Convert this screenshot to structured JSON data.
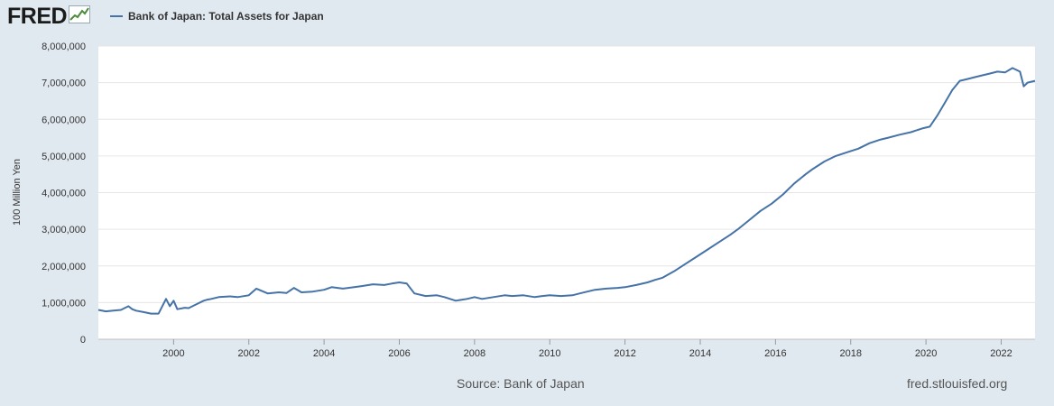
{
  "header": {
    "logo_text": "FRED",
    "logo_icon": "chart-trend-icon",
    "legend_label": "Bank of Japan: Total Assets for Japan"
  },
  "colors": {
    "background": "#e1e9f0",
    "plot_background": "#ffffff",
    "series": "#4572a7",
    "grid": "#e6e6e6"
  },
  "chart_data": {
    "type": "line",
    "title": "",
    "xlabel": "",
    "ylabel": "100 Million Yen",
    "xlim": [
      1998.0,
      2022.9
    ],
    "ylim": [
      0,
      8000000
    ],
    "x_ticks": [
      "2000",
      "2002",
      "2004",
      "2006",
      "2008",
      "2010",
      "2012",
      "2014",
      "2016",
      "2018",
      "2020",
      "2022"
    ],
    "y_ticks": [
      "0",
      "1,000,000",
      "2,000,000",
      "3,000,000",
      "4,000,000",
      "5,000,000",
      "6,000,000",
      "7,000,000",
      "8,000,000"
    ],
    "grid": "horizontal",
    "legend": "top-left",
    "series": [
      {
        "name": "Bank of Japan: Total Assets for Japan",
        "x": [
          1998.0,
          1998.2,
          1998.4,
          1998.6,
          1998.8,
          1998.9,
          1999.0,
          1999.2,
          1999.4,
          1999.6,
          1999.8,
          1999.9,
          2000.0,
          2000.1,
          2000.3,
          2000.4,
          2000.6,
          2000.8,
          2000.9,
          2001.0,
          2001.2,
          2001.5,
          2001.7,
          2002.0,
          2002.2,
          2002.5,
          2002.8,
          2003.0,
          2003.2,
          2003.4,
          2003.7,
          2004.0,
          2004.2,
          2004.5,
          2004.8,
          2005.0,
          2005.3,
          2005.6,
          2005.8,
          2006.0,
          2006.2,
          2006.4,
          2006.7,
          2007.0,
          2007.2,
          2007.5,
          2007.8,
          2008.0,
          2008.2,
          2008.5,
          2008.8,
          2009.0,
          2009.3,
          2009.6,
          2009.8,
          2010.0,
          2010.3,
          2010.6,
          2010.8,
          2011.0,
          2011.2,
          2011.5,
          2011.8,
          2012.0,
          2012.3,
          2012.6,
          2012.8,
          2013.0,
          2013.3,
          2013.6,
          2013.9,
          2014.2,
          2014.5,
          2014.8,
          2015.0,
          2015.3,
          2015.6,
          2015.9,
          2016.2,
          2016.5,
          2016.8,
          2017.0,
          2017.3,
          2017.6,
          2017.9,
          2018.2,
          2018.5,
          2018.8,
          2019.0,
          2019.3,
          2019.6,
          2019.9,
          2020.1,
          2020.3,
          2020.5,
          2020.7,
          2020.9,
          2021.1,
          2021.3,
          2021.5,
          2021.7,
          2021.9,
          2022.1,
          2022.3,
          2022.5,
          2022.6,
          2022.7,
          2022.9
        ],
        "values": [
          800000,
          760000,
          780000,
          800000,
          900000,
          820000,
          780000,
          740000,
          700000,
          700000,
          1100000,
          900000,
          1050000,
          820000,
          860000,
          850000,
          950000,
          1050000,
          1080000,
          1100000,
          1150000,
          1170000,
          1150000,
          1200000,
          1380000,
          1250000,
          1280000,
          1260000,
          1400000,
          1280000,
          1300000,
          1350000,
          1420000,
          1380000,
          1420000,
          1450000,
          1500000,
          1480000,
          1520000,
          1550000,
          1520000,
          1250000,
          1180000,
          1200000,
          1150000,
          1050000,
          1100000,
          1150000,
          1100000,
          1150000,
          1200000,
          1180000,
          1200000,
          1150000,
          1180000,
          1200000,
          1180000,
          1200000,
          1250000,
          1300000,
          1350000,
          1380000,
          1400000,
          1420000,
          1480000,
          1550000,
          1620000,
          1680000,
          1850000,
          2050000,
          2250000,
          2450000,
          2650000,
          2850000,
          3000000,
          3250000,
          3500000,
          3700000,
          3950000,
          4250000,
          4500000,
          4650000,
          4850000,
          5000000,
          5100000,
          5200000,
          5350000,
          5450000,
          5500000,
          5580000,
          5650000,
          5750000,
          5800000,
          6100000,
          6450000,
          6800000,
          7050000,
          7100000,
          7150000,
          7200000,
          7250000,
          7300000,
          7280000,
          7400000,
          7300000,
          6900000,
          7000000,
          7050000
        ]
      }
    ]
  },
  "footer": {
    "source": "Source: Bank of Japan",
    "site": "fred.stlouisfed.org"
  }
}
